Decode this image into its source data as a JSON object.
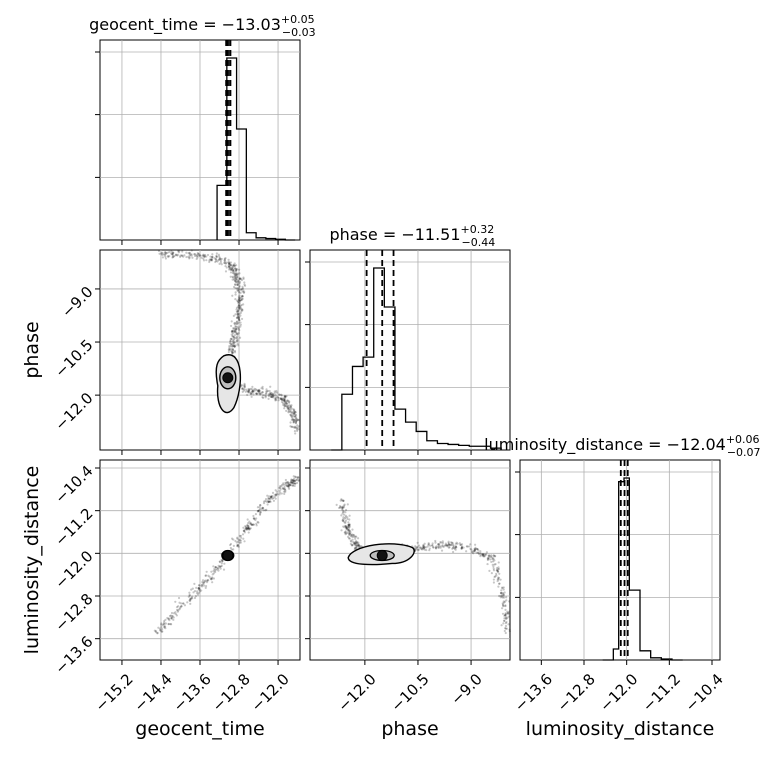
{
  "chart_data": {
    "type": "corner",
    "grid": true,
    "parameters": [
      "geocent_time",
      "phase",
      "luminosity_distance"
    ],
    "axis_labels": {
      "geocent_time": "geocent_time",
      "phase": "phase",
      "luminosity_distance": "luminosity_distance"
    },
    "ranges": {
      "geocent_time": [
        -15.65,
        -11.55
      ],
      "phase": [
        -13.55,
        -7.9
      ],
      "luminosity_distance": [
        -14.0,
        -10.25
      ]
    },
    "ticks": {
      "geocent_time": [
        {
          "v": -15.2,
          "label": "−15.2"
        },
        {
          "v": -14.4,
          "label": "−14.4"
        },
        {
          "v": -13.6,
          "label": "−13.6"
        },
        {
          "v": -12.8,
          "label": "−12.8"
        },
        {
          "v": -12.0,
          "label": "−12.0"
        }
      ],
      "phase": [
        {
          "v": -12.0,
          "label": "−12.0"
        },
        {
          "v": -10.5,
          "label": "−10.5"
        },
        {
          "v": -9.0,
          "label": "−9.0"
        }
      ],
      "luminosity_distance": [
        {
          "v": -13.6,
          "label": "−13.6"
        },
        {
          "v": -12.8,
          "label": "−12.8"
        },
        {
          "v": -12.0,
          "label": "−12.0"
        },
        {
          "v": -11.2,
          "label": "−11.2"
        },
        {
          "v": -10.4,
          "label": "−10.4"
        }
      ]
    },
    "titles": [
      {
        "param": "geocent_time",
        "text": "geocent_time = −13.03",
        "sup": "+0.05",
        "sub": "−0.03"
      },
      {
        "param": "phase",
        "text": "phase = −11.51",
        "sup": "+0.32",
        "sub": "−0.44"
      },
      {
        "param": "luminosity_distance",
        "text": "luminosity_distance = −12.04",
        "sup": "+0.06",
        "sub": "−0.07"
      }
    ],
    "quantiles": {
      "geocent_time": [
        -13.06,
        -13.03,
        -12.98
      ],
      "phase": [
        -11.95,
        -11.51,
        -11.19
      ],
      "luminosity_distance": [
        -12.11,
        -12.04,
        -11.98
      ]
    },
    "histograms": {
      "geocent_time": {
        "edges": [
          -13.25,
          -13.05,
          -12.85,
          -12.65,
          -12.45,
          -12.25,
          -12.05,
          -11.85,
          -11.65
        ],
        "counts": [
          0.3,
          1.0,
          0.61,
          0.04,
          0.012,
          0.008,
          0.004,
          0.0
        ]
      },
      "phase": {
        "edges": [
          -12.95,
          -12.65,
          -12.35,
          -12.05,
          -11.75,
          -11.45,
          -11.15,
          -10.85,
          -10.55,
          -10.25,
          -9.95,
          -9.65,
          -9.35,
          -9.05,
          -8.75,
          -8.45,
          -8.15
        ],
        "counts": [
          0.0,
          0.3,
          0.45,
          0.5,
          0.98,
          0.77,
          0.22,
          0.15,
          0.1,
          0.05,
          0.035,
          0.03,
          0.025,
          0.02,
          0.02,
          0.01
        ]
      },
      "luminosity_distance": {
        "edges": [
          -12.45,
          -12.25,
          -12.15,
          -12.05,
          -11.95,
          -11.75,
          -11.55,
          -11.35,
          -11.15,
          -10.95
        ],
        "counts": [
          0.0,
          0.06,
          0.97,
          0.99,
          0.38,
          0.05,
          0.012,
          0.005,
          0.0
        ]
      }
    },
    "samples": {
      "phase_vs_geocent_time": {
        "curves": [
          [
            [
              -14.5,
              -8.02
            ],
            [
              -13.8,
              -8.05
            ],
            [
              -13.2,
              -8.15
            ],
            [
              -12.9,
              -8.4
            ],
            [
              -12.8,
              -8.8
            ],
            [
              -12.78,
              -9.3
            ],
            [
              -12.82,
              -9.9
            ],
            [
              -12.9,
              -10.4
            ],
            [
              -12.98,
              -10.9
            ],
            [
              -13.02,
              -11.3
            ]
          ],
          [
            [
              -12.95,
              -11.6
            ],
            [
              -12.6,
              -11.9
            ],
            [
              -12.2,
              -11.95
            ],
            [
              -11.9,
              -12.1
            ],
            [
              -11.7,
              -12.5
            ],
            [
              -11.6,
              -13.0
            ]
          ]
        ],
        "core": [
          -13.03,
          -11.51
        ]
      },
      "luminosity_distance_vs_geocent_time": {
        "curves": [
          [
            [
              -14.5,
              -13.5
            ],
            [
              -14.0,
              -13.0
            ],
            [
              -13.5,
              -12.55
            ],
            [
              -13.1,
              -12.1
            ]
          ],
          [
            [
              -12.95,
              -11.95
            ],
            [
              -12.6,
              -11.5
            ],
            [
              -12.2,
              -11.0
            ],
            [
              -11.8,
              -10.7
            ],
            [
              -11.55,
              -10.6
            ]
          ]
        ],
        "core": [
          -13.03,
          -12.04
        ]
      },
      "luminosity_distance_vs_phase": {
        "curves": [
          [
            [
              -12.7,
              -11.0
            ],
            [
              -12.5,
              -11.5
            ],
            [
              -12.3,
              -11.8
            ],
            [
              -12.0,
              -12.0
            ]
          ],
          [
            [
              -11.2,
              -11.95
            ],
            [
              -10.5,
              -11.9
            ],
            [
              -9.8,
              -11.85
            ],
            [
              -9.0,
              -11.9
            ],
            [
              -8.4,
              -12.1
            ],
            [
              -8.1,
              -12.8
            ],
            [
              -7.95,
              -13.5
            ]
          ]
        ],
        "core": [
          -11.51,
          -12.04
        ]
      }
    }
  }
}
